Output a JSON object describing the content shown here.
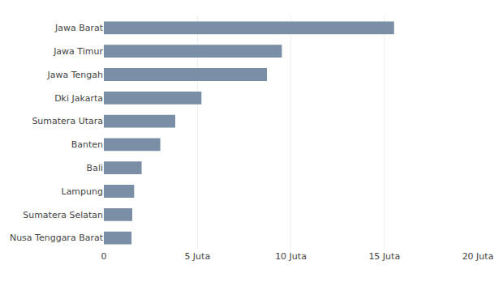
{
  "chart_data": {
    "type": "bar",
    "orientation": "horizontal",
    "categories": [
      "Nusa Tenggara Barat",
      "Sumatera Selatan",
      "Lampung",
      "Bali",
      "Banten",
      "Sumatera Utara",
      "Dki Jakarta",
      "Jawa Tengah",
      "Jawa Timur",
      "Jawa Barat"
    ],
    "values": [
      1.48,
      1.52,
      1.62,
      2.02,
      3.02,
      3.82,
      5.22,
      8.72,
      9.52,
      15.52
    ],
    "color": "#7a8fa6",
    "xlim": [
      0,
      20
    ],
    "xticks": [
      0,
      {
        "value": 5,
        "label": "5 Juta"
      },
      {
        "value": 10,
        "label": "10 Juta"
      },
      {
        "value": 15,
        "label": "15 Juta"
      },
      {
        "value": 20,
        "label": "20 Juta"
      }
    ],
    "grid": true
  }
}
